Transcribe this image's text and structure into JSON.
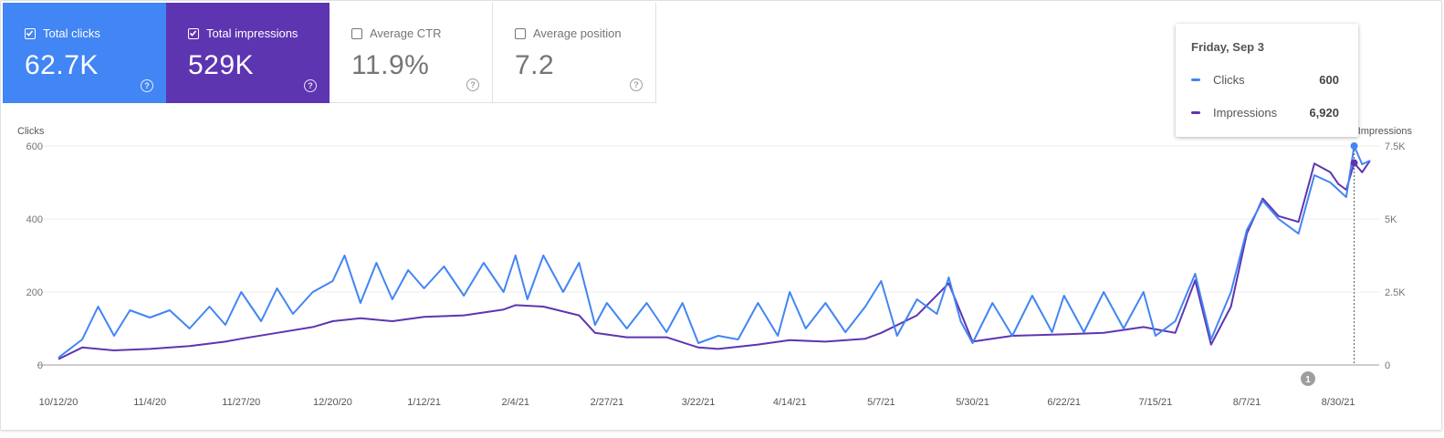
{
  "metric_cards": [
    {
      "label": "Total clicks",
      "value": "62.7K",
      "checked": true,
      "color": "#4285f4"
    },
    {
      "label": "Total impressions",
      "value": "529K",
      "checked": true,
      "color": "#5e35b1"
    },
    {
      "label": "Average CTR",
      "value": "11.9%",
      "checked": false
    },
    {
      "label": "Average position",
      "value": "7.2",
      "checked": false
    }
  ],
  "tooltip": {
    "date": "Friday, Sep 3",
    "rows": [
      {
        "name": "Clicks",
        "value": "600",
        "color": "#4285f4"
      },
      {
        "name": "Impressions",
        "value": "6,920",
        "color": "#5e35b1"
      }
    ]
  },
  "annotation_badge": "1",
  "chart_data": {
    "type": "line",
    "grid": true,
    "x_axis": {
      "tick_labels": [
        "10/12/20",
        "11/4/20",
        "11/27/20",
        "12/20/20",
        "1/12/21",
        "2/4/21",
        "2/27/21",
        "3/22/21",
        "4/14/21",
        "5/7/21",
        "5/30/21",
        "6/22/21",
        "7/15/21",
        "8/7/21",
        "8/30/21"
      ],
      "start": "10/12/20",
      "end": "9/7/21"
    },
    "y_left": {
      "label": "Clicks",
      "ticks": [
        "0",
        "200",
        "400",
        "600"
      ],
      "range": [
        0,
        600
      ]
    },
    "y_right": {
      "label": "Impressions",
      "ticks": [
        "0",
        "2.5K",
        "5K",
        "7.5K"
      ],
      "range": [
        0,
        7500
      ]
    },
    "highlight_date": "9/3/21",
    "series": [
      {
        "name": "Clicks",
        "axis": "left",
        "color": "#4285f4",
        "points": [
          [
            "10/12/20",
            20
          ],
          [
            "10/18/20",
            70
          ],
          [
            "10/22/20",
            160
          ],
          [
            "10/26/20",
            80
          ],
          [
            "10/30/20",
            150
          ],
          [
            "11/4/20",
            130
          ],
          [
            "11/9/20",
            150
          ],
          [
            "11/14/20",
            100
          ],
          [
            "11/19/20",
            160
          ],
          [
            "11/23/20",
            110
          ],
          [
            "11/27/20",
            200
          ],
          [
            "12/2/20",
            120
          ],
          [
            "12/6/20",
            210
          ],
          [
            "12/10/20",
            140
          ],
          [
            "12/15/20",
            200
          ],
          [
            "12/20/20",
            230
          ],
          [
            "12/23/20",
            300
          ],
          [
            "12/27/20",
            170
          ],
          [
            "12/31/20",
            280
          ],
          [
            "1/4/21",
            180
          ],
          [
            "1/8/21",
            260
          ],
          [
            "1/12/21",
            210
          ],
          [
            "1/17/21",
            270
          ],
          [
            "1/22/21",
            190
          ],
          [
            "1/27/21",
            280
          ],
          [
            "2/1/21",
            200
          ],
          [
            "2/4/21",
            300
          ],
          [
            "2/7/21",
            180
          ],
          [
            "2/11/21",
            300
          ],
          [
            "2/16/21",
            200
          ],
          [
            "2/20/21",
            280
          ],
          [
            "2/24/21",
            110
          ],
          [
            "2/27/21",
            170
          ],
          [
            "3/4/21",
            100
          ],
          [
            "3/9/21",
            170
          ],
          [
            "3/14/21",
            90
          ],
          [
            "3/18/21",
            170
          ],
          [
            "3/22/21",
            60
          ],
          [
            "3/27/21",
            80
          ],
          [
            "4/1/21",
            70
          ],
          [
            "4/6/21",
            170
          ],
          [
            "4/11/21",
            80
          ],
          [
            "4/14/21",
            200
          ],
          [
            "4/18/21",
            100
          ],
          [
            "4/23/21",
            170
          ],
          [
            "4/28/21",
            90
          ],
          [
            "5/3/21",
            160
          ],
          [
            "5/7/21",
            230
          ],
          [
            "5/11/21",
            80
          ],
          [
            "5/16/21",
            180
          ],
          [
            "5/21/21",
            140
          ],
          [
            "5/24/21",
            240
          ],
          [
            "5/27/21",
            120
          ],
          [
            "5/30/21",
            60
          ],
          [
            "6/4/21",
            170
          ],
          [
            "6/9/21",
            80
          ],
          [
            "6/14/21",
            190
          ],
          [
            "6/19/21",
            90
          ],
          [
            "6/22/21",
            190
          ],
          [
            "6/27/21",
            90
          ],
          [
            "7/2/21",
            200
          ],
          [
            "7/7/21",
            100
          ],
          [
            "7/12/21",
            200
          ],
          [
            "7/15/21",
            80
          ],
          [
            "7/20/21",
            120
          ],
          [
            "7/25/21",
            250
          ],
          [
            "7/29/21",
            70
          ],
          [
            "8/3/21",
            200
          ],
          [
            "8/7/21",
            370
          ],
          [
            "8/11/21",
            450
          ],
          [
            "8/15/21",
            400
          ],
          [
            "8/20/21",
            360
          ],
          [
            "8/24/21",
            520
          ],
          [
            "8/28/21",
            500
          ],
          [
            "8/30/21",
            480
          ],
          [
            "9/1/21",
            460
          ],
          [
            "9/3/21",
            600
          ],
          [
            "9/5/21",
            550
          ],
          [
            "9/7/21",
            560
          ]
        ]
      },
      {
        "name": "Impressions",
        "axis": "right",
        "color": "#5e35b1",
        "points": [
          [
            "10/12/20",
            200
          ],
          [
            "10/18/20",
            600
          ],
          [
            "10/26/20",
            500
          ],
          [
            "11/4/20",
            550
          ],
          [
            "11/14/20",
            650
          ],
          [
            "11/23/20",
            800
          ],
          [
            "11/27/20",
            900
          ],
          [
            "12/6/20",
            1100
          ],
          [
            "12/15/20",
            1300
          ],
          [
            "12/20/20",
            1500
          ],
          [
            "12/27/20",
            1600
          ],
          [
            "1/4/21",
            1500
          ],
          [
            "1/12/21",
            1650
          ],
          [
            "1/22/21",
            1700
          ],
          [
            "2/1/21",
            1900
          ],
          [
            "2/4/21",
            2050
          ],
          [
            "2/11/21",
            2000
          ],
          [
            "2/20/21",
            1700
          ],
          [
            "2/24/21",
            1100
          ],
          [
            "3/4/21",
            950
          ],
          [
            "3/14/21",
            950
          ],
          [
            "3/22/21",
            600
          ],
          [
            "3/27/21",
            550
          ],
          [
            "4/6/21",
            700
          ],
          [
            "4/14/21",
            850
          ],
          [
            "4/23/21",
            800
          ],
          [
            "5/3/21",
            900
          ],
          [
            "5/7/21",
            1100
          ],
          [
            "5/16/21",
            1700
          ],
          [
            "5/24/21",
            2800
          ],
          [
            "5/30/21",
            800
          ],
          [
            "6/9/21",
            1000
          ],
          [
            "6/22/21",
            1050
          ],
          [
            "7/2/21",
            1100
          ],
          [
            "7/12/21",
            1300
          ],
          [
            "7/20/21",
            1100
          ],
          [
            "7/25/21",
            2900
          ],
          [
            "7/29/21",
            700
          ],
          [
            "8/3/21",
            2000
          ],
          [
            "8/7/21",
            4500
          ],
          [
            "8/11/21",
            5700
          ],
          [
            "8/15/21",
            5100
          ],
          [
            "8/20/21",
            4900
          ],
          [
            "8/24/21",
            6900
          ],
          [
            "8/28/21",
            6600
          ],
          [
            "8/30/21",
            6200
          ],
          [
            "9/1/21",
            6000
          ],
          [
            "9/3/21",
            6920
          ],
          [
            "9/5/21",
            6600
          ],
          [
            "9/7/21",
            7000
          ]
        ]
      }
    ]
  }
}
